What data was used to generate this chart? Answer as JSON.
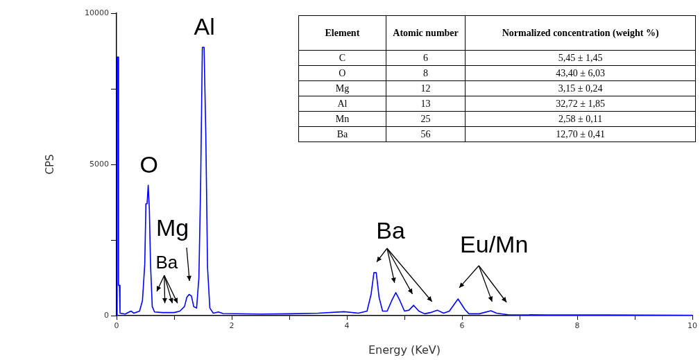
{
  "chart_data": {
    "type": "line",
    "xlabel": "Energy (KeV)",
    "ylabel": "CPS",
    "xlim": [
      0,
      10
    ],
    "xticks": [
      0,
      {
        "value": 1,
        "label": null
      },
      2,
      {
        "value": 3,
        "label": null
      },
      4,
      {
        "value": 5,
        "label": null
      },
      6,
      {
        "value": 7,
        "label": null
      },
      8,
      {
        "value": 9,
        "label": null
      },
      10
    ],
    "ylim": [
      0,
      10000
    ],
    "yticks": [
      0,
      {
        "value": 2500,
        "label": null
      },
      5000,
      {
        "value": 7500,
        "label": null
      },
      10000
    ],
    "grid": false,
    "legend": false,
    "marker": "none",
    "line_style": "solid",
    "series": [
      {
        "color": "#0000ff",
        "x": [
          0,
          0.01,
          0.03,
          0.035,
          0.05,
          0.06,
          0.15,
          0.25,
          0.3,
          0.4,
          0.45,
          0.49,
          0.51,
          0.53,
          0.55,
          0.57,
          0.59,
          0.62,
          0.66,
          0.8,
          0.9,
          1.0,
          1.1,
          1.18,
          1.22,
          1.26,
          1.3,
          1.34,
          1.39,
          1.43,
          1.46,
          1.49,
          1.52,
          1.55,
          1.58,
          1.62,
          1.68,
          1.77,
          1.85,
          2.5,
          3.0,
          3.5,
          3.95,
          4.2,
          4.35,
          4.42,
          4.47,
          4.51,
          4.56,
          4.62,
          4.7,
          4.78,
          4.85,
          4.92,
          5.0,
          5.08,
          5.16,
          5.25,
          5.35,
          5.45,
          5.57,
          5.68,
          5.78,
          5.93,
          6.05,
          6.12,
          6.3,
          6.5,
          6.6,
          6.8,
          7.5,
          8.5,
          10
        ],
        "values": [
          0,
          8550,
          8550,
          1000,
          1000,
          80,
          50,
          150,
          80,
          150,
          500,
          1700,
          3700,
          3700,
          4310,
          3500,
          1700,
          300,
          120,
          100,
          100,
          100,
          150,
          300,
          600,
          700,
          650,
          300,
          250,
          1250,
          4300,
          8870,
          8870,
          6000,
          1600,
          250,
          80,
          120,
          70,
          50,
          60,
          80,
          130,
          80,
          150,
          700,
          1420,
          1420,
          600,
          150,
          150,
          500,
          760,
          500,
          150,
          180,
          340,
          150,
          60,
          100,
          180,
          80,
          150,
          550,
          200,
          60,
          60,
          160,
          80,
          30,
          20,
          20,
          10
        ]
      }
    ],
    "annotations": [
      {
        "text": "Al",
        "x": 1.49,
        "y": 8870
      },
      {
        "text": "O",
        "x": 0.55,
        "y": 4310
      },
      {
        "text": "Mg",
        "x": 1.26,
        "y": 700
      },
      {
        "text": "Ba",
        "x": 0.8,
        "y": 100
      },
      {
        "text": "Ba",
        "x": 4.47,
        "y": 1420
      },
      {
        "text": "Eu/Mn",
        "x": 5.93,
        "y": 550
      },
      "Element",
      "Atomic number",
      "Normalized concentration (weight %)",
      "C",
      "6",
      "5,45  ± 1,45",
      "O",
      "8",
      "43,40 ± 6,03",
      "Mg",
      "12",
      "3,15  ± 0,24",
      "Al",
      "13",
      "32,72 ± 1,85",
      "Mn",
      "25",
      "2,58 ± 0,11",
      "Ba",
      "56",
      "12,70 ± 0,41"
    ]
  }
}
